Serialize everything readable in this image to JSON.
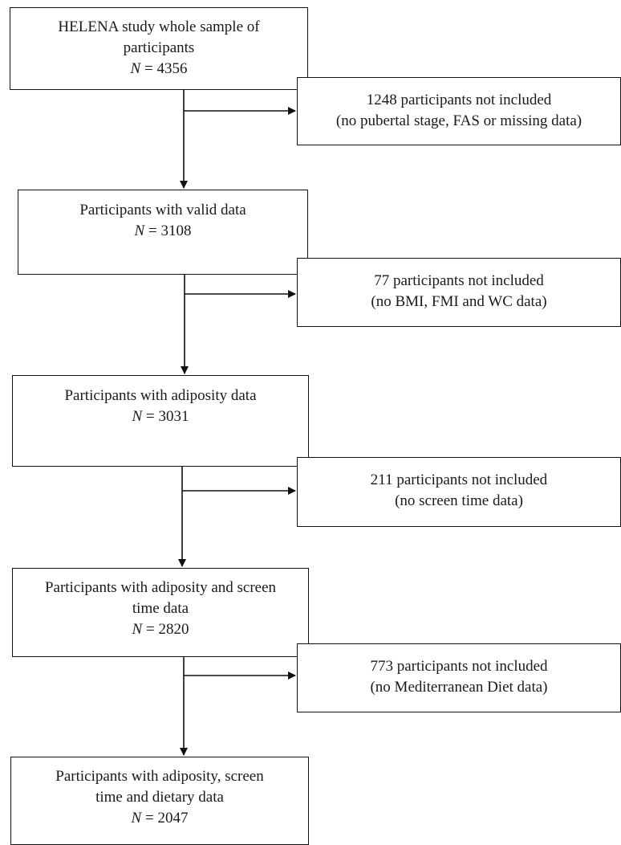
{
  "main_boxes": [
    {
      "lines": [
        "HELENA study whole sample of",
        "participants"
      ],
      "n_label": "N",
      "n_value": "= 4356"
    },
    {
      "lines": [
        "Participants with valid data"
      ],
      "n_label": "N",
      "n_value": "= 3108"
    },
    {
      "lines": [
        "Participants with adiposity data"
      ],
      "n_label": "N",
      "n_value": "= 3031"
    },
    {
      "lines": [
        "Participants with adiposity and screen",
        "time data"
      ],
      "n_label": "N",
      "n_value": "= 2820"
    },
    {
      "lines": [
        "Participants with adiposity, screen",
        "time and dietary data"
      ],
      "n_label": "N",
      "n_value": "= 2047"
    }
  ],
  "exclusion_boxes": [
    {
      "lines": [
        "1248 participants not included",
        "(no pubertal stage, FAS or missing data)"
      ]
    },
    {
      "lines": [
        "77 participants not included",
        "(no BMI, FMI and WC data)"
      ]
    },
    {
      "lines": [
        "211 participants not included",
        "(no screen time data)"
      ]
    },
    {
      "lines": [
        "773 participants not included",
        "(no Mediterranean Diet data)"
      ]
    }
  ]
}
